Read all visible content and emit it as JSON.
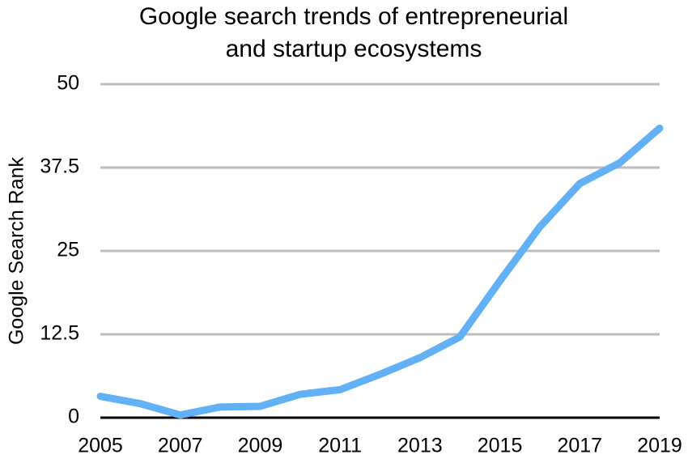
{
  "chart_data": {
    "type": "line",
    "title": [
      "Google search trends of entrepreneurial",
      "and startup ecosystems"
    ],
    "y_label": "Google Search Rank",
    "x": [
      2005,
      2006,
      2007,
      2008,
      2009,
      2010,
      2011,
      2012,
      2013,
      2014,
      2015,
      2016,
      2017,
      2018,
      2019
    ],
    "series": [
      {
        "name": "Google Search Rank",
        "color": "#62b0f5",
        "values": [
          3.2,
          2.1,
          0.4,
          1.6,
          1.7,
          3.5,
          4.2,
          6.5,
          9.0,
          12.1,
          20.5,
          28.6,
          35.1,
          38.2,
          43.4
        ]
      }
    ],
    "xlim": [
      2005,
      2019
    ],
    "xticks": [
      2005,
      2007,
      2009,
      2011,
      2013,
      2015,
      2017,
      2019
    ],
    "ylim": [
      0,
      50
    ],
    "yticks": [
      0,
      12.5,
      25,
      37.5,
      50
    ],
    "grid": true
  }
}
